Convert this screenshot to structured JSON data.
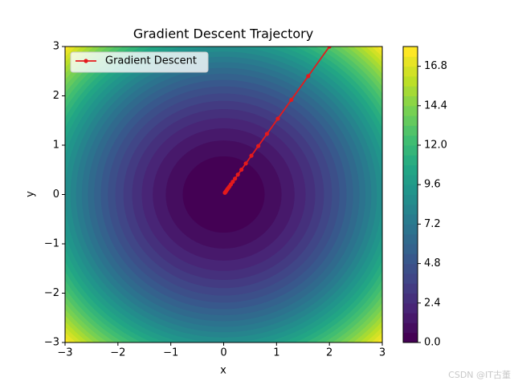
{
  "chart_data": {
    "type": "contour-trajectory",
    "title": "Gradient Descent Trajectory",
    "xlabel": "x",
    "ylabel": "y",
    "xlim": [
      -3,
      3
    ],
    "ylim": [
      -3,
      3
    ],
    "xticks": [
      {
        "value": -3,
        "label": "−3"
      },
      {
        "value": -2,
        "label": "−2"
      },
      {
        "value": -1,
        "label": "−1"
      },
      0,
      1,
      2,
      3
    ],
    "yticks": [
      {
        "value": -3,
        "label": "−3"
      },
      {
        "value": -2,
        "label": "−2"
      },
      {
        "value": -1,
        "label": "−1"
      },
      0,
      1,
      2,
      3
    ],
    "colormap": "viridis",
    "levels": [
      0,
      0.6,
      1.2,
      1.8,
      2.4,
      3,
      3.6,
      4.2,
      4.8,
      5.4,
      6,
      6.6,
      7.2,
      7.8,
      8.4,
      9,
      9.6,
      10.2,
      10.8,
      11.4,
      12,
      12.6,
      13.2,
      13.8,
      14.4,
      15,
      15.6,
      16.2,
      16.8,
      17.4,
      18
    ],
    "clim": [
      0,
      18
    ],
    "cticks": [
      {
        "value": 0,
        "label": "0.0"
      },
      2.4,
      4.8,
      7.2,
      9.6,
      {
        "value": 12,
        "label": "12.0"
      },
      14.4,
      16.8
    ],
    "series": [
      {
        "name": "Gradient Descent",
        "color": "#e41a1c",
        "x": [
          2,
          1.6,
          1.28,
          1.024,
          0.819,
          0.655,
          0.524,
          0.419,
          0.336,
          0.268,
          0.215,
          0.172,
          0.137,
          0.11,
          0.088,
          0.07,
          0.056,
          0.045,
          0.036,
          0.029,
          0.023
        ],
        "values": [
          3,
          2.4,
          1.92,
          1.536,
          1.229,
          0.983,
          0.786,
          0.629,
          0.503,
          0.403,
          0.322,
          0.258,
          0.206,
          0.165,
          0.132,
          0.106,
          0.084,
          0.068,
          0.054,
          0.043,
          0.035
        ]
      }
    ],
    "legend": "upper left",
    "watermark": "CSDN @IT古董"
  }
}
